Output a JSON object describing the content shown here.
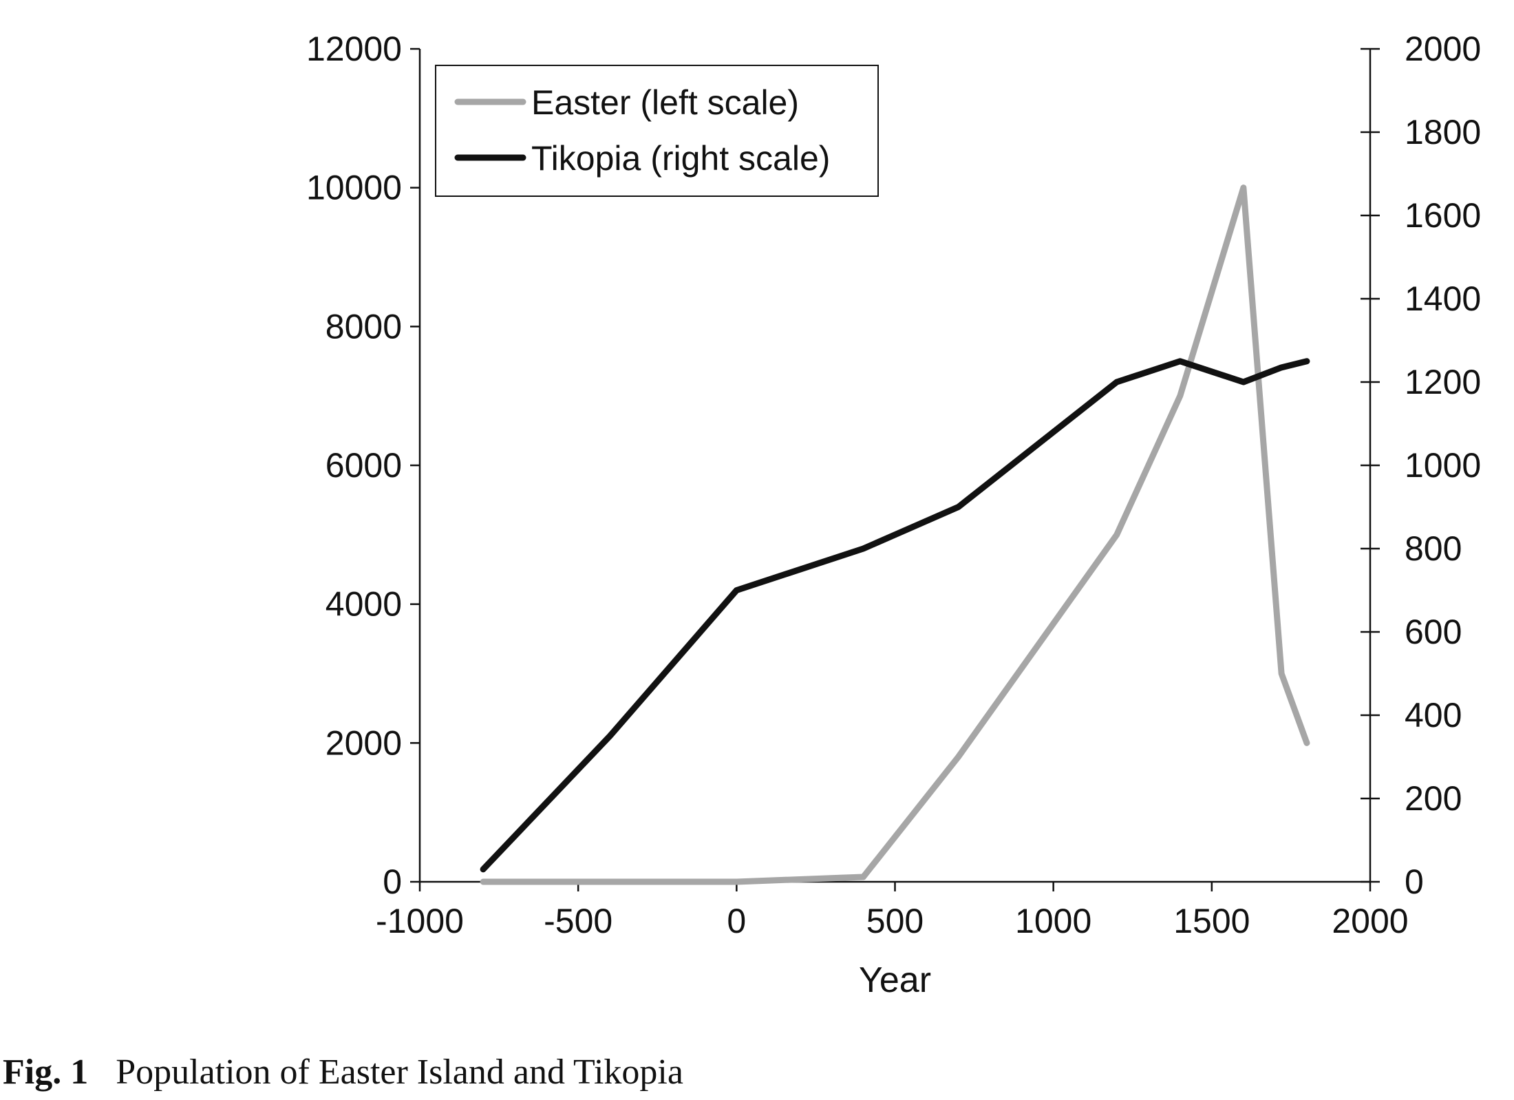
{
  "chart_data": {
    "type": "line",
    "title": "",
    "xlabel": "Year",
    "ylabel_left": "",
    "ylabel_right": "",
    "xlim": [
      -1000,
      2000
    ],
    "ylim_left": [
      0,
      12000
    ],
    "ylim_right": [
      0,
      2000
    ],
    "x_ticks": [
      "-1000",
      "-500",
      "0",
      "500",
      "1000",
      "1500",
      "2000"
    ],
    "y_left_ticks": [
      "0",
      "2000",
      "4000",
      "6000",
      "8000",
      "10000",
      "12000"
    ],
    "y_right_ticks": [
      "0",
      "200",
      "400",
      "600",
      "800",
      "1000",
      "1200",
      "1400",
      "1600",
      "1800",
      "2000"
    ],
    "grid": false,
    "legend_position": "top-left",
    "series": [
      {
        "name": "Easter (left scale)",
        "axis": "left",
        "color": "#a6a6a6",
        "x": [
          -800,
          0,
          400,
          700,
          1200,
          1400,
          1600,
          1720,
          1800
        ],
        "y": [
          0,
          0,
          70,
          1800,
          5000,
          7000,
          10000,
          3000,
          2000
        ]
      },
      {
        "name": "Tikopia (right scale)",
        "axis": "right",
        "color": "#111111",
        "x": [
          -800,
          -400,
          0,
          400,
          700,
          1200,
          1400,
          1600,
          1720,
          1800
        ],
        "y": [
          30,
          350,
          700,
          800,
          900,
          1200,
          1250,
          1200,
          1235,
          1250
        ]
      }
    ]
  },
  "caption": {
    "label": "Fig. 1",
    "text": "Population of Easter Island and Tikopia"
  }
}
